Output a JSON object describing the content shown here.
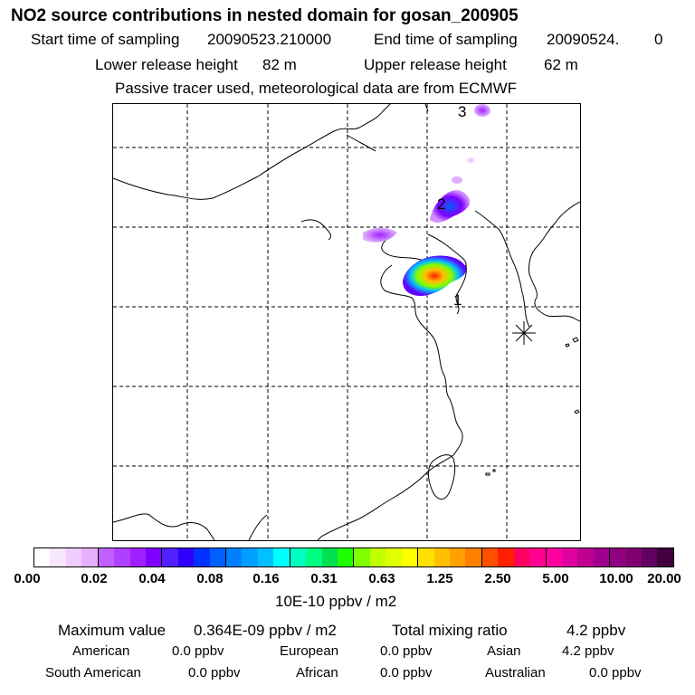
{
  "header": {
    "title": "NO2 source contributions in nested domain for gosan_200905",
    "start_label": "Start time of sampling",
    "start_value": "20090523.210000",
    "end_label": "End time of sampling",
    "end_value": "20090524.",
    "end_hour": "0",
    "lower_label": "Lower release height",
    "lower_value": "82 m",
    "upper_label": "Upper release height",
    "upper_value": "62 m",
    "note": "Passive tracer used, meteorological data are from ECMWF"
  },
  "map": {
    "source_labels": [
      "1",
      "2",
      "3"
    ],
    "receptor_icon": "asterisk-icon",
    "colors": {
      "grid": "#000000",
      "coast": "#000000",
      "plume_low": "#b000ff",
      "plume_mid": "#00c0ff",
      "plume_high": "#ff2000"
    }
  },
  "colorbar": {
    "colors": [
      "#ffffff",
      "#f8e6ff",
      "#f0ccff",
      "#e6b0ff",
      "#c060ff",
      "#b040ff",
      "#a020ff",
      "#8000ff",
      "#5020ff",
      "#3000ff",
      "#0030ff",
      "#0060ff",
      "#0080ff",
      "#00a0ff",
      "#00c0ff",
      "#00ffff",
      "#00ffc0",
      "#00ff80",
      "#00e050",
      "#20ff00",
      "#80ff00",
      "#c0ff00",
      "#e0ff00",
      "#ffff00",
      "#ffe000",
      "#ffc000",
      "#ffa000",
      "#ff8000",
      "#ff5000",
      "#ff2000",
      "#ff0060",
      "#ff0090",
      "#ff00a0",
      "#e000a0",
      "#c00090",
      "#a00090",
      "#900080",
      "#800070",
      "#600060",
      "#400040"
    ],
    "ticks": [
      "0.00",
      "0.02",
      "0.04",
      "0.08",
      "0.16",
      "0.31",
      "0.63",
      "1.25",
      "2.50",
      "5.00",
      "10.00",
      "20.00"
    ],
    "units": "10E-10 ppbv / m2"
  },
  "stats": {
    "max_label": "Maximum value",
    "max_value": "0.364E-09 ppbv / m2",
    "total_label": "Total mixing ratio",
    "total_value": "4.2 ppbv",
    "regions": [
      {
        "name": "American",
        "value": "0.0 ppbv"
      },
      {
        "name": "European",
        "value": "0.0 ppbv"
      },
      {
        "name": "Asian",
        "value": "4.2 ppbv"
      },
      {
        "name": "South American",
        "value": "0.0 ppbv"
      },
      {
        "name": "African",
        "value": "0.0 ppbv"
      },
      {
        "name": "Australian",
        "value": "0.0 ppbv"
      }
    ]
  }
}
